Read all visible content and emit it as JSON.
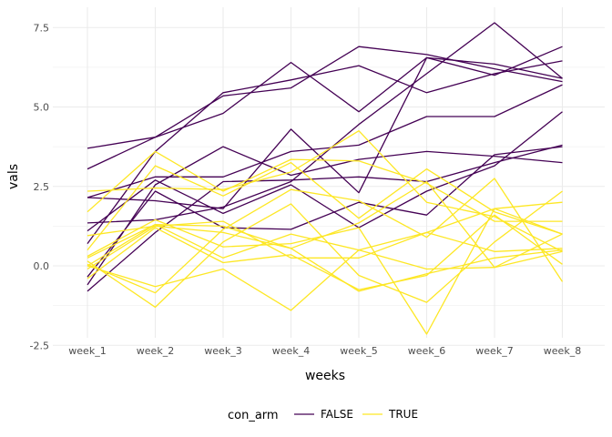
{
  "chart_data": {
    "type": "line",
    "xlabel": "weeks",
    "ylabel": "vals",
    "categories": [
      "week_1",
      "week_2",
      "week_3",
      "week_4",
      "week_5",
      "week_6",
      "week_7",
      "week_8"
    ],
    "ylim": [
      -2.9,
      8.0
    ],
    "yticks": [
      -2.5,
      0.0,
      2.5,
      5.0,
      7.5
    ],
    "ytick_labels": [
      "-2.5",
      "0.0",
      "2.5",
      "5.0",
      "7.5"
    ],
    "grid": true,
    "legend": {
      "title": "con_arm",
      "position": "bottom",
      "entries": [
        {
          "label": "FALSE",
          "color": "#440154"
        },
        {
          "label": "TRUE",
          "color": "#FDE725"
        }
      ]
    },
    "series": [
      {
        "group": "FALSE",
        "color": "#440154",
        "values": [
          3.7,
          4.05,
          5.35,
          5.6,
          6.9,
          6.65,
          6.2,
          5.8
        ]
      },
      {
        "group": "FALSE",
        "color": "#440154",
        "values": [
          3.05,
          4.05,
          4.8,
          6.4,
          4.85,
          6.55,
          6.0,
          6.9
        ]
      },
      {
        "group": "FALSE",
        "color": "#440154",
        "values": [
          2.15,
          2.05,
          1.8,
          4.3,
          2.3,
          6.55,
          6.35,
          5.9
        ]
      },
      {
        "group": "FALSE",
        "color": "#440154",
        "values": [
          1.35,
          1.45,
          1.85,
          2.65,
          4.45,
          6.05,
          7.65,
          5.9
        ]
      },
      {
        "group": "FALSE",
        "color": "#440154",
        "values": [
          0.7,
          3.6,
          5.45,
          5.85,
          6.3,
          5.45,
          6.05,
          6.45
        ]
      },
      {
        "group": "FALSE",
        "color": "#440154",
        "values": [
          -0.35,
          2.35,
          1.2,
          1.15,
          2.0,
          1.6,
          3.5,
          3.75
        ]
      },
      {
        "group": "FALSE",
        "color": "#440154",
        "values": [
          -0.6,
          2.55,
          3.75,
          2.85,
          3.35,
          3.6,
          3.45,
          3.25
        ]
      },
      {
        "group": "FALSE",
        "color": "#440154",
        "values": [
          2.15,
          2.8,
          2.8,
          3.6,
          3.8,
          4.7,
          4.7,
          5.7
        ]
      },
      {
        "group": "FALSE",
        "color": "#440154",
        "values": [
          1.1,
          2.7,
          1.65,
          2.55,
          1.2,
          2.35,
          3.15,
          4.85
        ]
      },
      {
        "group": "FALSE",
        "color": "#440154",
        "values": [
          -0.8,
          1.05,
          2.65,
          2.7,
          2.8,
          2.65,
          3.25,
          3.8
        ]
      },
      {
        "group": "TRUE",
        "color": "#FDE725",
        "values": [
          2.35,
          2.45,
          2.4,
          2.95,
          4.25,
          2.0,
          1.55,
          0.45
        ]
      },
      {
        "group": "TRUE",
        "color": "#FDE725",
        "values": [
          1.7,
          3.6,
          2.35,
          3.35,
          3.3,
          2.6,
          1.4,
          1.4
        ]
      },
      {
        "group": "TRUE",
        "color": "#FDE725",
        "values": [
          0.5,
          3.15,
          2.2,
          3.25,
          1.5,
          3.05,
          1.7,
          1.0
        ]
      },
      {
        "group": "TRUE",
        "color": "#FDE725",
        "values": [
          0.05,
          -0.85,
          1.15,
          2.4,
          2.05,
          0.9,
          2.75,
          -0.5
        ]
      },
      {
        "group": "TRUE",
        "color": "#FDE725",
        "values": [
          0.95,
          1.25,
          1.05,
          0.55,
          1.35,
          2.65,
          -0.05,
          1.0
        ]
      },
      {
        "group": "TRUE",
        "color": "#FDE725",
        "values": [
          -0.4,
          1.2,
          0.1,
          0.35,
          -0.75,
          -0.3,
          1.6,
          0.05
        ]
      },
      {
        "group": "TRUE",
        "color": "#FDE725",
        "values": [
          0.15,
          -1.3,
          0.75,
          1.95,
          -0.3,
          -1.15,
          0.75,
          2.35
        ]
      },
      {
        "group": "TRUE",
        "color": "#FDE725",
        "values": [
          0.0,
          -0.65,
          -0.1,
          -1.4,
          0.5,
          -0.1,
          -0.05,
          0.45
        ]
      },
      {
        "group": "TRUE",
        "color": "#FDE725",
        "values": [
          0.25,
          1.3,
          1.25,
          0.55,
          -0.8,
          -0.25,
          0.25,
          0.5
        ]
      },
      {
        "group": "TRUE",
        "color": "#FDE725",
        "values": [
          -0.1,
          1.25,
          1.4,
          0.25,
          0.25,
          1.05,
          0.45,
          0.55
        ]
      },
      {
        "group": "TRUE",
        "color": "#FDE725",
        "values": [
          0.3,
          1.45,
          0.6,
          0.7,
          1.2,
          -2.15,
          1.8,
          2.0
        ]
      },
      {
        "group": "TRUE",
        "color": "#FDE725",
        "values": [
          0.0,
          1.3,
          0.25,
          1.0,
          0.5,
          1.05,
          1.8,
          1.0
        ]
      }
    ]
  }
}
